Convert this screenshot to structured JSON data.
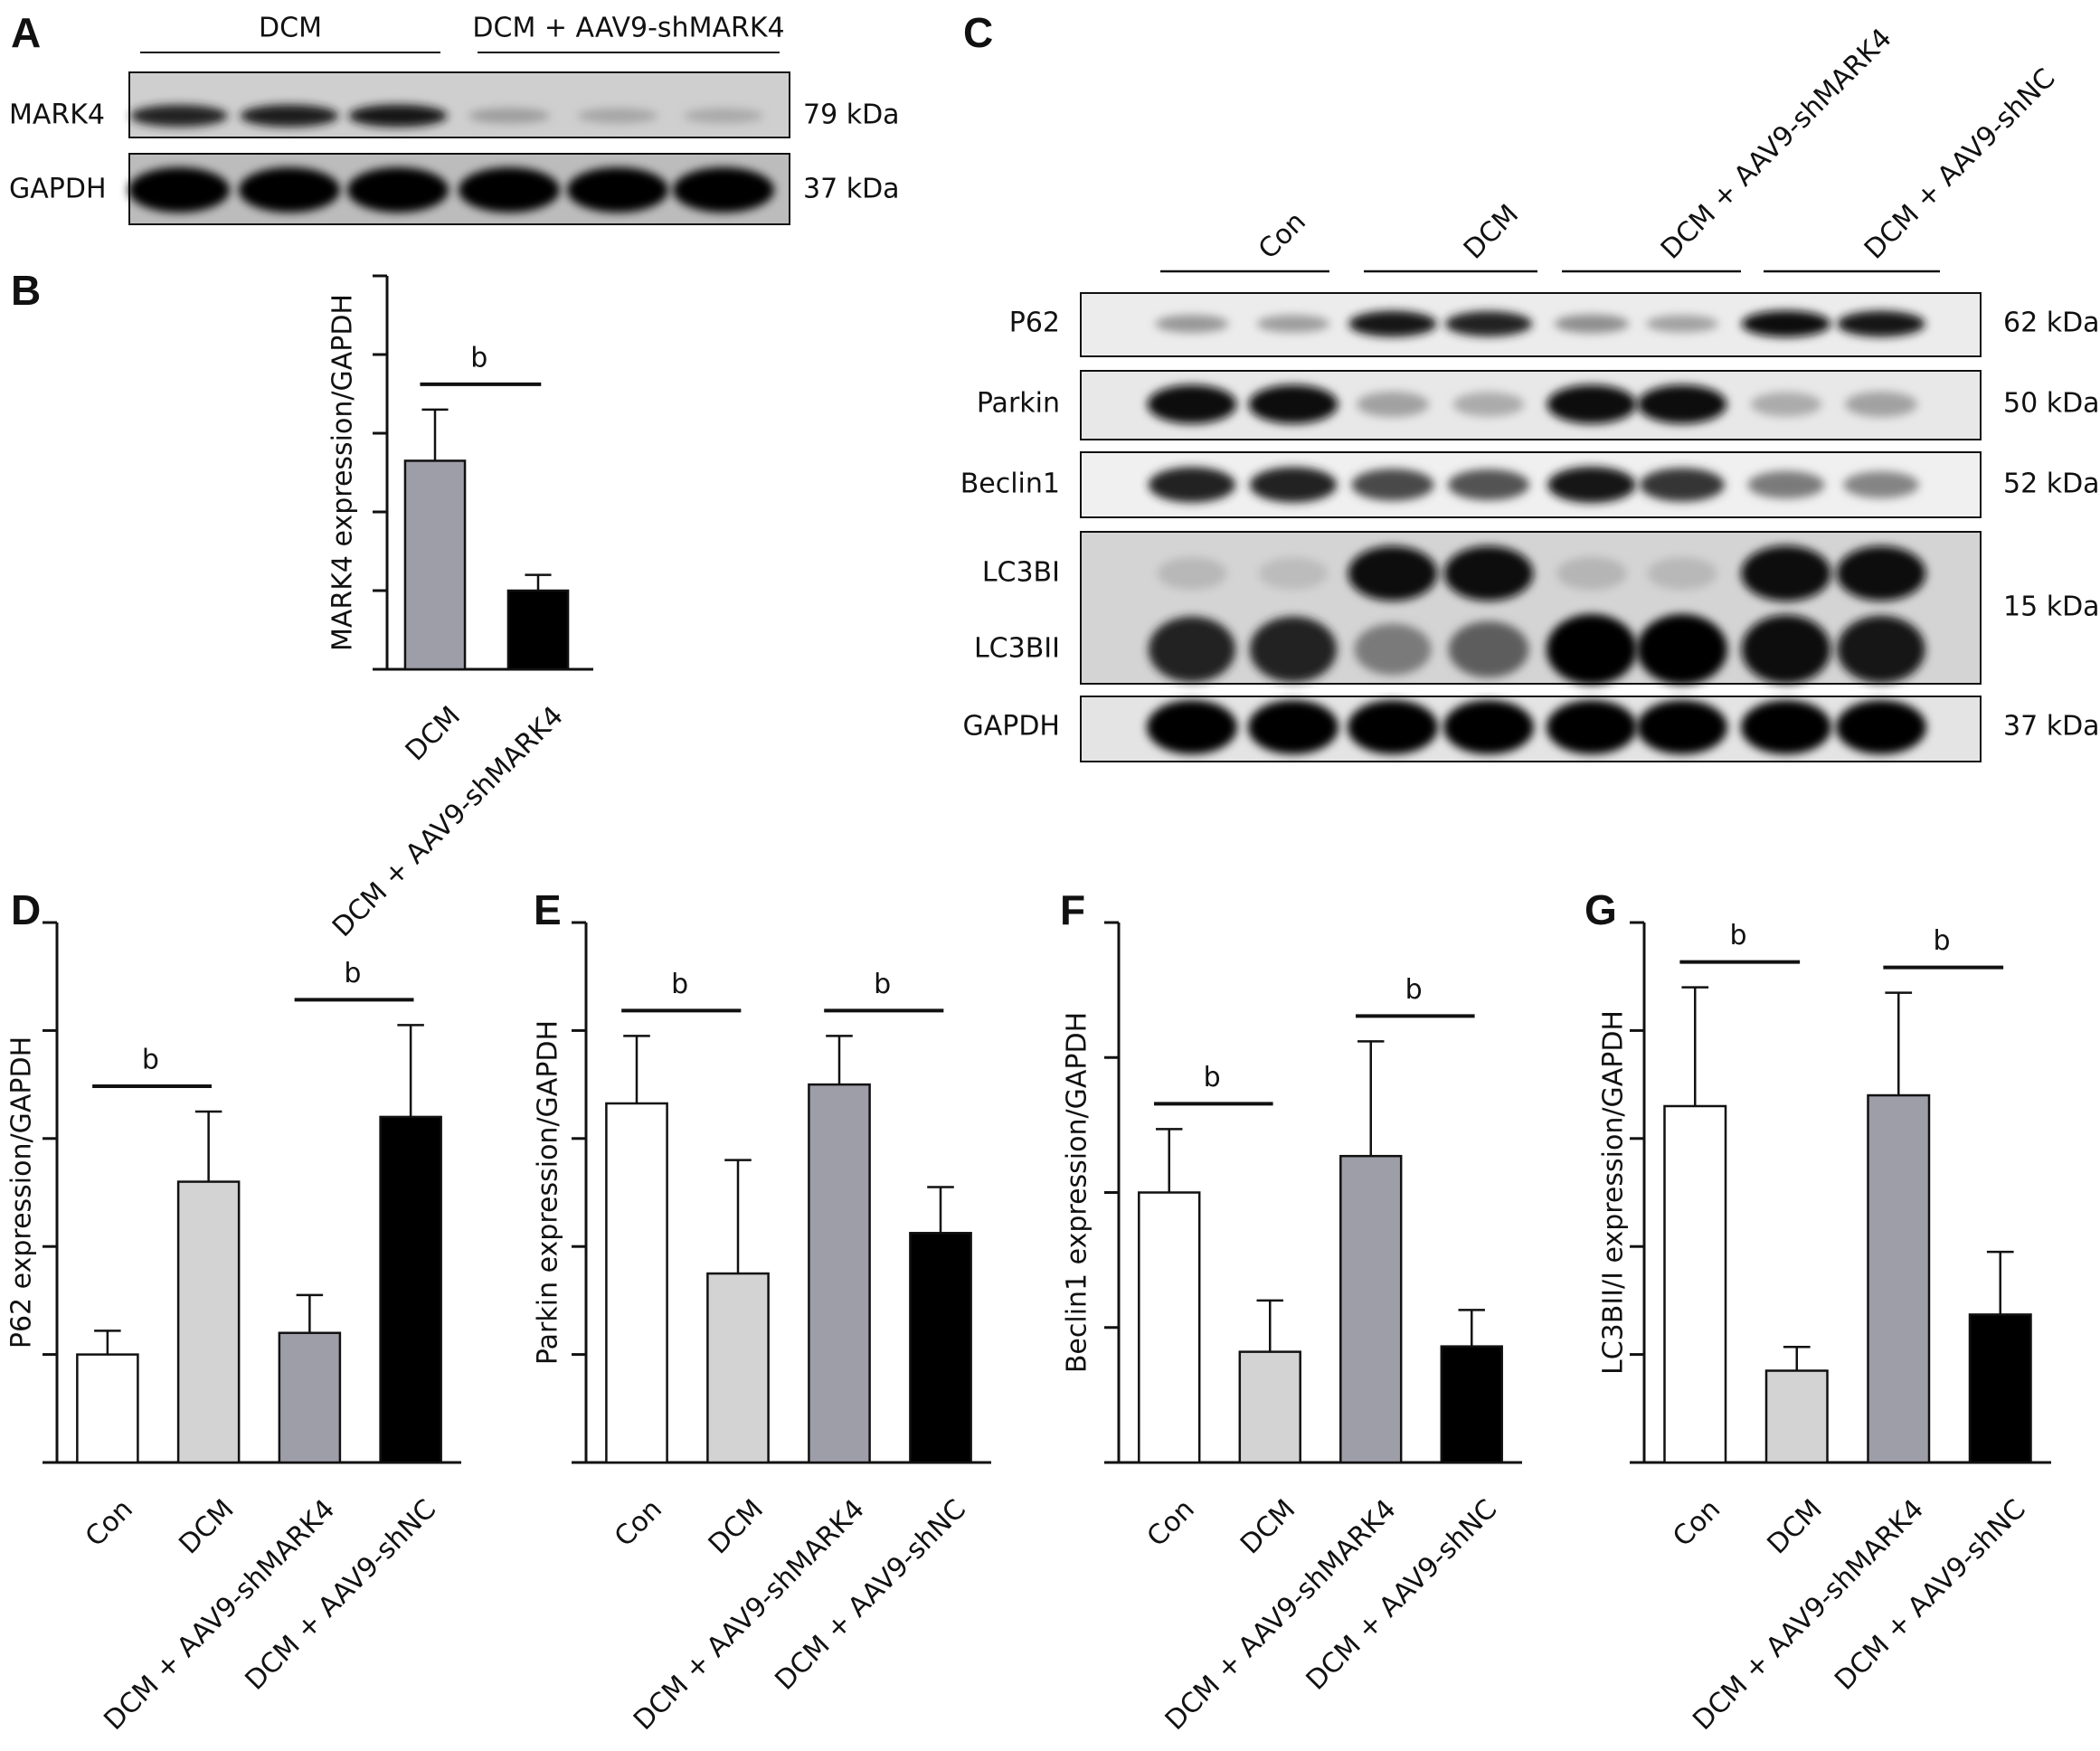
{
  "figure": {
    "panels": {
      "A": {
        "letter": "A",
        "groups": [
          "DCM",
          "DCM + AAV9-shMARK4"
        ],
        "rows": [
          {
            "protein": "MARK4",
            "kda": "79 kDa",
            "lanes": [
              0.85,
              0.88,
              0.9,
              0.22,
              0.18,
              0.16
            ]
          },
          {
            "protein": "GAPDH",
            "kda": "37 kDa",
            "lanes": [
              1.0,
              1.0,
              1.0,
              1.0,
              1.0,
              1.0
            ]
          }
        ]
      },
      "B": {
        "letter": "B"
      },
      "C": {
        "letter": "C",
        "groups": [
          "Con",
          "DCM",
          "DCM + AAV9-shMARK4",
          "DCM + AAV9-shNC"
        ],
        "rows": [
          {
            "protein": "P62",
            "kda": "62 kDa",
            "lanes": [
              0.25,
              0.22,
              0.9,
              0.85,
              0.3,
              0.2,
              0.95,
              0.9
            ]
          },
          {
            "protein": "Parkin",
            "kda": "50 kDa",
            "lanes": [
              0.95,
              0.95,
              0.2,
              0.15,
              0.95,
              0.95,
              0.15,
              0.2
            ]
          },
          {
            "protein": "Beclin1",
            "kda": "52 kDa",
            "lanes": [
              0.85,
              0.85,
              0.65,
              0.6,
              0.9,
              0.75,
              0.4,
              0.35
            ]
          },
          {
            "protein": "LC3BI",
            "kda": "",
            "lanes": [
              0.08,
              0.06,
              0.95,
              0.95,
              0.1,
              0.08,
              0.98,
              0.95
            ]
          },
          {
            "protein": "LC3BII",
            "kda": "15 kDa",
            "lanes": [
              0.85,
              0.85,
              0.4,
              0.55,
              1.0,
              1.0,
              0.95,
              0.9
            ]
          },
          {
            "protein": "GAPDH",
            "kda": "37 kDa",
            "lanes": [
              1.0,
              1.0,
              1.0,
              1.0,
              1.0,
              1.0,
              1.0,
              1.0
            ]
          }
        ]
      },
      "D": {
        "letter": "D"
      },
      "E": {
        "letter": "E"
      },
      "F": {
        "letter": "F"
      },
      "G": {
        "letter": "G"
      }
    }
  },
  "chart_data": [
    {
      "panel": "B",
      "type": "bar",
      "categories": [
        "DCM",
        "DCM + AAV9-shMARK4"
      ],
      "values": [
        2.65,
        1.0
      ],
      "errors": [
        0.65,
        0.2
      ],
      "ylabel": "MARK4 expression/GAPDH",
      "ylim": [
        0,
        5
      ],
      "yticks": 5,
      "significance": [
        {
          "from": 0,
          "to": 1,
          "label": "b"
        }
      ],
      "colors": [
        "#9e9ea8",
        "#000000"
      ],
      "grid": false
    },
    {
      "panel": "D",
      "type": "bar",
      "categories": [
        "Con",
        "DCM",
        "DCM + AAV9-shMARK4",
        "DCM + AAV9-shNC"
      ],
      "values": [
        1.0,
        2.6,
        1.2,
        3.2
      ],
      "errors": [
        0.22,
        0.65,
        0.35,
        0.85
      ],
      "ylabel": "P62 expression/GAPDH",
      "ylim": [
        0,
        5
      ],
      "yticks": 5,
      "significance": [
        {
          "from": 0,
          "to": 1,
          "label": "b"
        },
        {
          "from": 2,
          "to": 3,
          "label": "b"
        }
      ],
      "colors": [
        "#ffffff",
        "#d3d3d3",
        "#9e9ea8",
        "#000000"
      ],
      "grid": false
    },
    {
      "panel": "E",
      "type": "bar",
      "categories": [
        "Con",
        "DCM",
        "DCM + AAV9-shMARK4",
        "DCM + AAV9-shNC"
      ],
      "values": [
        1.33,
        0.7,
        1.4,
        0.85
      ],
      "errors": [
        0.25,
        0.42,
        0.18,
        0.17
      ],
      "ylabel": "Parkin expression/GAPDH",
      "ylim": [
        0,
        2
      ],
      "yticks": 5,
      "significance": [
        {
          "from": 0,
          "to": 1,
          "label": "b"
        },
        {
          "from": 2,
          "to": 3,
          "label": "b"
        }
      ],
      "colors": [
        "#ffffff",
        "#d3d3d3",
        "#9e9ea8",
        "#000000"
      ],
      "grid": false
    },
    {
      "panel": "F",
      "type": "bar",
      "categories": [
        "Con",
        "DCM",
        "DCM + AAV9-shMARK4",
        "DCM + AAV9-shNC"
      ],
      "values": [
        2.0,
        0.82,
        2.27,
        0.86
      ],
      "errors": [
        0.47,
        0.38,
        0.85,
        0.27
      ],
      "ylabel": "Beclin1 expression/GAPDH",
      "ylim": [
        0,
        4
      ],
      "yticks": 4,
      "significance": [
        {
          "from": 0,
          "to": 1,
          "label": "b"
        },
        {
          "from": 2,
          "to": 3,
          "label": "b"
        }
      ],
      "colors": [
        "#ffffff",
        "#d3d3d3",
        "#9e9ea8",
        "#000000"
      ],
      "grid": false
    },
    {
      "panel": "G",
      "type": "bar",
      "categories": [
        "Con",
        "DCM",
        "DCM + AAV9-shMARK4",
        "DCM + AAV9-shNC"
      ],
      "values": [
        3.3,
        0.85,
        3.4,
        1.37
      ],
      "errors": [
        1.1,
        0.22,
        0.95,
        0.58
      ],
      "ylabel": "LC3BII/I expression/GAPDH",
      "ylim": [
        0,
        5
      ],
      "yticks": 5,
      "significance": [
        {
          "from": 0,
          "to": 1,
          "label": "b"
        },
        {
          "from": 2,
          "to": 3,
          "label": "b"
        }
      ],
      "colors": [
        "#ffffff",
        "#d3d3d3",
        "#9e9ea8",
        "#000000"
      ],
      "grid": false
    }
  ]
}
